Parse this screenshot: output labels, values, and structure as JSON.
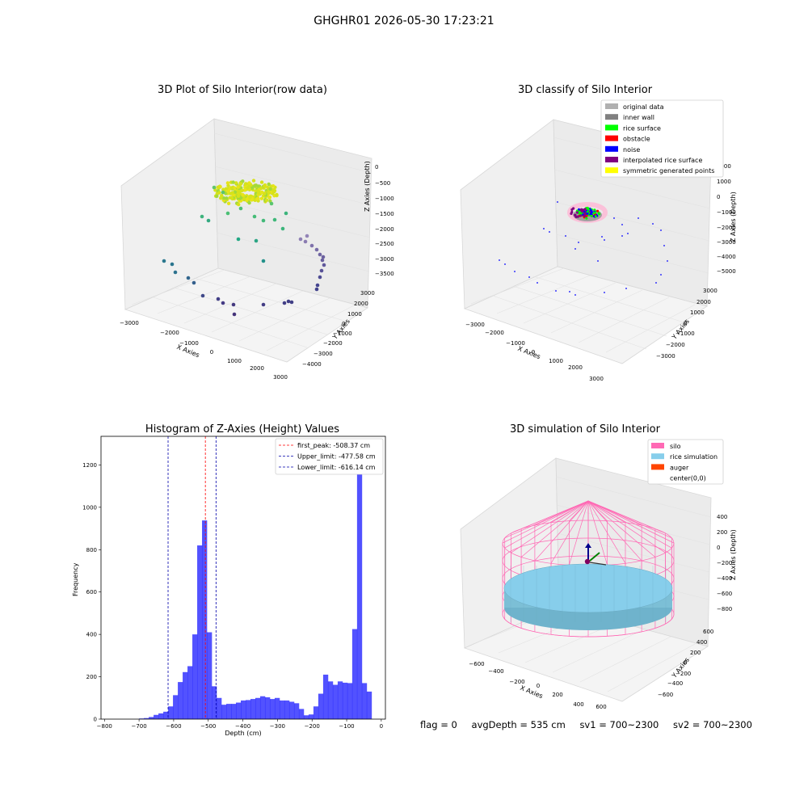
{
  "header": {
    "title": "GHGHR01 2026-05-30 17:23:21"
  },
  "panels": {
    "raw": {
      "title": "3D Plot of Silo Interior(row data)",
      "xlabel": "X Axies",
      "ylabel": "Y Axies",
      "zlabel": "Z Axies (Depth)",
      "xticks": [
        "−3000",
        "−2000",
        "−1000",
        "0",
        "1000",
        "2000",
        "3000"
      ],
      "yticks": [
        "3000",
        "2000",
        "1000",
        "0",
        "−1000",
        "−2000",
        "−3000",
        "−4000"
      ],
      "zticks": [
        "0",
        "−500",
        "−1000",
        "−1500",
        "−2000",
        "−2500",
        "−3000",
        "−3500"
      ]
    },
    "classify": {
      "title": "3D classify of Silo Interior",
      "xlabel": "X Axies",
      "ylabel": "Y Axies",
      "zlabel": "Z Axies (Depth)",
      "xticks": [
        "−3000",
        "−2000",
        "−1000",
        "0",
        "1000",
        "2000",
        "3000"
      ],
      "yticks": [
        "3000",
        "2000",
        "1000",
        "0",
        "−1000",
        "−2000",
        "−3000"
      ],
      "zticks": [
        "2000",
        "1000",
        "0",
        "−1000",
        "−2000",
        "−3000",
        "−4000",
        "−5000"
      ],
      "legend": [
        {
          "label": "original data",
          "color": "#b0b0b0"
        },
        {
          "label": "inner wall",
          "color": "#808080"
        },
        {
          "label": "rice surface",
          "color": "#00ff00"
        },
        {
          "label": "obstacle",
          "color": "#ff0000"
        },
        {
          "label": "noise",
          "color": "#0000ff"
        },
        {
          "label": "interpolated rice surface",
          "color": "#800080"
        },
        {
          "label": "symmetric generated points",
          "color": "#ffff00"
        }
      ]
    },
    "simulation": {
      "title": "3D simulation of Silo Interior",
      "xlabel": "X Axies",
      "ylabel": "Y Axies",
      "zlabel": "Z Axies (Depth)",
      "xticks": [
        "−600",
        "−400",
        "−200",
        "0",
        "200",
        "400",
        "600"
      ],
      "yticks": [
        "600",
        "400",
        "200",
        "0",
        "−200",
        "−400",
        "−600"
      ],
      "zticks": [
        "400",
        "200",
        "0",
        "−200",
        "−400",
        "−600",
        "−800"
      ],
      "legend": [
        {
          "label": "silo",
          "color": "#ff69b4"
        },
        {
          "label": "rice simulation",
          "color": "#87ceeb"
        },
        {
          "label": "auger",
          "color": "#ff4500"
        },
        {
          "label": "center(0,0)",
          "color": "#ffffff"
        }
      ]
    }
  },
  "chart_data": {
    "type": "bar",
    "title": "Histogram of Z-Axies (Height) Values",
    "xlabel": "Depth (cm)",
    "ylabel": "Frequency",
    "xlim": [
      -810,
      12
    ],
    "ylim": [
      0,
      1335
    ],
    "xticks": [
      -800,
      -700,
      -600,
      -500,
      -400,
      -300,
      -200,
      -100,
      0
    ],
    "yticks": [
      0,
      200,
      400,
      600,
      800,
      1000,
      1200
    ],
    "bar_color": "#0000ff",
    "bins": [
      {
        "x0": -700,
        "x1": -686,
        "y": 3
      },
      {
        "x0": -686,
        "x1": -672,
        "y": 5
      },
      {
        "x0": -672,
        "x1": -658,
        "y": 10
      },
      {
        "x0": -658,
        "x1": -644,
        "y": 20
      },
      {
        "x0": -644,
        "x1": -630,
        "y": 27
      },
      {
        "x0": -630,
        "x1": -616,
        "y": 35
      },
      {
        "x0": -616,
        "x1": -602,
        "y": 60
      },
      {
        "x0": -602,
        "x1": -588,
        "y": 113
      },
      {
        "x0": -588,
        "x1": -574,
        "y": 175
      },
      {
        "x0": -574,
        "x1": -560,
        "y": 222
      },
      {
        "x0": -560,
        "x1": -546,
        "y": 250
      },
      {
        "x0": -546,
        "x1": -532,
        "y": 400
      },
      {
        "x0": -532,
        "x1": -518,
        "y": 820
      },
      {
        "x0": -518,
        "x1": -504,
        "y": 938
      },
      {
        "x0": -504,
        "x1": -490,
        "y": 410
      },
      {
        "x0": -490,
        "x1": -476,
        "y": 155
      },
      {
        "x0": -476,
        "x1": -462,
        "y": 100
      },
      {
        "x0": -462,
        "x1": -448,
        "y": 68
      },
      {
        "x0": -448,
        "x1": -434,
        "y": 72
      },
      {
        "x0": -434,
        "x1": -420,
        "y": 72
      },
      {
        "x0": -420,
        "x1": -406,
        "y": 78
      },
      {
        "x0": -406,
        "x1": -392,
        "y": 88
      },
      {
        "x0": -392,
        "x1": -378,
        "y": 90
      },
      {
        "x0": -378,
        "x1": -364,
        "y": 95
      },
      {
        "x0": -364,
        "x1": -350,
        "y": 100
      },
      {
        "x0": -350,
        "x1": -336,
        "y": 108
      },
      {
        "x0": -336,
        "x1": -322,
        "y": 103
      },
      {
        "x0": -322,
        "x1": -308,
        "y": 95
      },
      {
        "x0": -308,
        "x1": -294,
        "y": 100
      },
      {
        "x0": -294,
        "x1": -280,
        "y": 88
      },
      {
        "x0": -280,
        "x1": -266,
        "y": 88
      },
      {
        "x0": -266,
        "x1": -252,
        "y": 82
      },
      {
        "x0": -252,
        "x1": -238,
        "y": 75
      },
      {
        "x0": -238,
        "x1": -224,
        "y": 48
      },
      {
        "x0": -224,
        "x1": -210,
        "y": 18
      },
      {
        "x0": -210,
        "x1": -196,
        "y": 22
      },
      {
        "x0": -196,
        "x1": -182,
        "y": 60
      },
      {
        "x0": -182,
        "x1": -168,
        "y": 120
      },
      {
        "x0": -168,
        "x1": -154,
        "y": 210
      },
      {
        "x0": -154,
        "x1": -140,
        "y": 178
      },
      {
        "x0": -140,
        "x1": -126,
        "y": 162
      },
      {
        "x0": -126,
        "x1": -112,
        "y": 178
      },
      {
        "x0": -112,
        "x1": -98,
        "y": 172
      },
      {
        "x0": -98,
        "x1": -84,
        "y": 170
      },
      {
        "x0": -84,
        "x1": -70,
        "y": 425
      },
      {
        "x0": -70,
        "x1": -56,
        "y": 1255
      },
      {
        "x0": -56,
        "x1": -42,
        "y": 170
      },
      {
        "x0": -42,
        "x1": -28,
        "y": 130
      }
    ],
    "lines": [
      {
        "label": "first_peak: -508.37 cm",
        "x": -508.37,
        "color": "#ff0000"
      },
      {
        "label": "Upper_limit: -477.58 cm",
        "x": -477.58,
        "color": "#0000aa"
      },
      {
        "label": "Lower_limit: -616.14 cm",
        "x": -616.14,
        "color": "#0000aa"
      }
    ],
    "legend_position": "top-right"
  },
  "status": {
    "flag": "flag = 0",
    "avg": "avgDepth = 535 cm",
    "sv1": "sv1 = 700~2300",
    "sv2": "sv2 = 700~2300"
  }
}
